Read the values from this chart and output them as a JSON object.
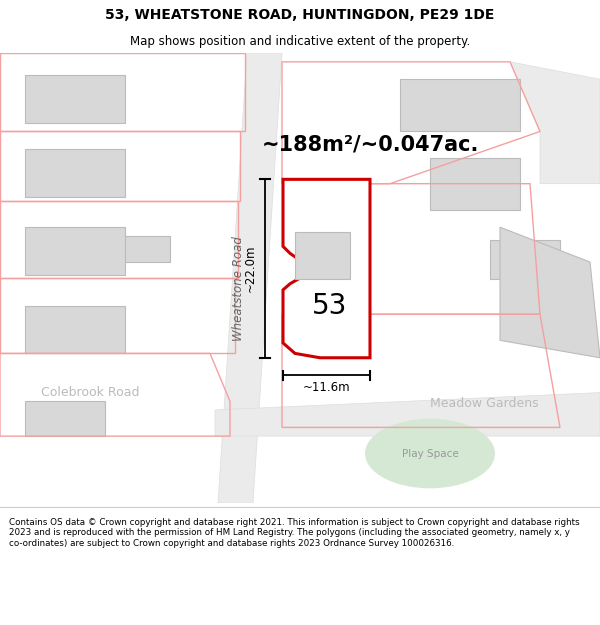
{
  "title": "53, WHEATSTONE ROAD, HUNTINGDON, PE29 1DE",
  "subtitle": "Map shows position and indicative extent of the property.",
  "area_text": "~188m²/~0.047ac.",
  "label_53": "53",
  "dim_width": "~11.6m",
  "dim_height": "~22.0m",
  "road_label": "Wheatstone Road",
  "meadow_label": "Meadow Gardens",
  "colebrook_label": "Colebrook Road",
  "play_label": "Play Space",
  "footer": "Contains OS data © Crown copyright and database right 2021. This information is subject to Crown copyright and database rights 2023 and is reproduced with the permission of HM Land Registry. The polygons (including the associated geometry, namely x, y co-ordinates) are subject to Crown copyright and database rights 2023 Ordnance Survey 100026316.",
  "bg_color": "#ffffff",
  "map_bg": "#ffffff",
  "building_fill": "#d8d8d8",
  "building_edge": "#bbbbbb",
  "pink_line": "#f5a0a0",
  "plot_fill": "#ffffff",
  "plot_edge": "#cc0000",
  "green_fill": "#d5e8d4",
  "road_fill": "#eeeeee",
  "footer_bg": "#f8f8f8",
  "text_gray": "#aaaaaa",
  "text_dark": "#333333"
}
